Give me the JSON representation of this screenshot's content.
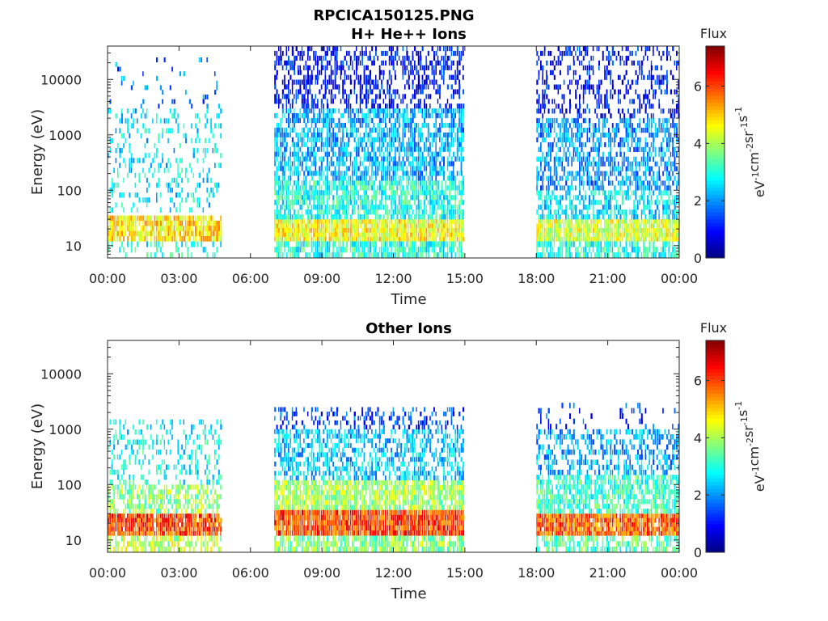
{
  "figure": {
    "title_line1": "RPCICA150125.PNG"
  },
  "colormap": [
    "#00007f",
    "#0000ff",
    "#007fff",
    "#00ffff",
    "#7fff7f",
    "#ffff00",
    "#ff7f00",
    "#ff0000",
    "#7f0000"
  ],
  "chart_data": [
    {
      "type": "heatmap",
      "title": "H+ He++ Ions",
      "xlabel": "Time",
      "ylabel": "Energy (eV)",
      "y_scale": "log",
      "ylim": [
        6,
        40000
      ],
      "xlim": [
        0,
        24
      ],
      "x_tick_labels": [
        "00:00",
        "03:00",
        "06:00",
        "09:00",
        "12:00",
        "15:00",
        "18:00",
        "21:00",
        "00:00"
      ],
      "x_tick_values": [
        0,
        3,
        6,
        9,
        12,
        15,
        18,
        21,
        24
      ],
      "y_tick_labels": [
        "10",
        "100",
        "1000",
        "10000"
      ],
      "y_tick_values": [
        10,
        100,
        1000,
        10000
      ],
      "colorbar": {
        "label": "Flux",
        "units_base": [
          "eV",
          "cm",
          "sr",
          "s"
        ],
        "units_exp": [
          "-1",
          "-2",
          "-1",
          "-1"
        ],
        "ticks": [
          "0",
          "2",
          "4",
          "6"
        ],
        "tick_values": [
          0,
          2,
          4,
          6
        ],
        "clim": [
          0,
          7.4
        ]
      },
      "data_intervals": [
        {
          "start": 0.0,
          "end": 4.75,
          "bands": [
            {
              "elo": 12,
              "ehi": 35,
              "flux": 4.8,
              "density": 0.9
            },
            {
              "elo": 6,
              "ehi": 12,
              "flux": 3.0,
              "density": 0.25
            },
            {
              "elo": 40,
              "ehi": 3000,
              "flux": 2.6,
              "density": 0.22
            },
            {
              "elo": 3000,
              "ehi": 25000,
              "flux": 1.8,
              "density": 0.06
            }
          ]
        },
        {
          "start": 7.0,
          "end": 15.0,
          "bands": [
            {
              "elo": 12,
              "ehi": 30,
              "flux": 4.6,
              "density": 0.98
            },
            {
              "elo": 6,
              "ehi": 12,
              "flux": 3.0,
              "density": 0.8
            },
            {
              "elo": 30,
              "ehi": 150,
              "flux": 3.0,
              "density": 0.8
            },
            {
              "elo": 150,
              "ehi": 3000,
              "flux": 2.2,
              "density": 0.7
            },
            {
              "elo": 3000,
              "ehi": 40000,
              "flux": 1.0,
              "density": 0.5
            }
          ]
        },
        {
          "start": 18.0,
          "end": 24.0,
          "bands": [
            {
              "elo": 12,
              "ehi": 30,
              "flux": 4.3,
              "density": 0.95
            },
            {
              "elo": 6,
              "ehi": 12,
              "flux": 3.0,
              "density": 0.7
            },
            {
              "elo": 30,
              "ehi": 100,
              "flux": 2.6,
              "density": 0.6
            },
            {
              "elo": 100,
              "ehi": 2000,
              "flux": 2.0,
              "density": 0.6
            },
            {
              "elo": 2000,
              "ehi": 40000,
              "flux": 1.0,
              "density": 0.35
            }
          ]
        }
      ]
    },
    {
      "type": "heatmap",
      "title": "Other Ions",
      "xlabel": "Time",
      "ylabel": "Energy (eV)",
      "y_scale": "log",
      "ylim": [
        6,
        40000
      ],
      "xlim": [
        0,
        24
      ],
      "x_tick_labels": [
        "00:00",
        "03:00",
        "06:00",
        "09:00",
        "12:00",
        "15:00",
        "18:00",
        "21:00",
        "00:00"
      ],
      "x_tick_values": [
        0,
        3,
        6,
        9,
        12,
        15,
        18,
        21,
        24
      ],
      "y_tick_labels": [
        "10",
        "100",
        "1000",
        "10000"
      ],
      "y_tick_values": [
        10,
        100,
        1000,
        10000
      ],
      "colorbar": {
        "label": "Flux",
        "units_base": [
          "eV",
          "cm",
          "sr",
          "s"
        ],
        "units_exp": [
          "-1",
          "-2",
          "-1",
          "-1"
        ],
        "ticks": [
          "0",
          "2",
          "4",
          "6"
        ],
        "tick_values": [
          0,
          2,
          4,
          6
        ],
        "clim": [
          0,
          7.4
        ]
      },
      "data_intervals": [
        {
          "start": 0.0,
          "end": 4.8,
          "bands": [
            {
              "elo": 12,
              "ehi": 30,
              "flux": 6.0,
              "density": 0.95
            },
            {
              "elo": 6,
              "ehi": 12,
              "flux": 4.2,
              "density": 0.6
            },
            {
              "elo": 30,
              "ehi": 100,
              "flux": 3.8,
              "density": 0.6
            },
            {
              "elo": 100,
              "ehi": 1500,
              "flux": 2.8,
              "density": 0.3
            }
          ]
        },
        {
          "start": 7.0,
          "end": 15.0,
          "bands": [
            {
              "elo": 12,
              "ehi": 35,
              "flux": 6.0,
              "density": 0.99
            },
            {
              "elo": 6,
              "ehi": 12,
              "flux": 3.8,
              "density": 0.8
            },
            {
              "elo": 35,
              "ehi": 120,
              "flux": 4.0,
              "density": 0.85
            },
            {
              "elo": 120,
              "ehi": 1000,
              "flux": 2.4,
              "density": 0.55
            },
            {
              "elo": 1000,
              "ehi": 2500,
              "flux": 1.4,
              "density": 0.3
            }
          ]
        },
        {
          "start": 18.0,
          "end": 24.0,
          "bands": [
            {
              "elo": 12,
              "ehi": 30,
              "flux": 5.8,
              "density": 0.97
            },
            {
              "elo": 6,
              "ehi": 12,
              "flux": 3.4,
              "density": 0.7
            },
            {
              "elo": 30,
              "ehi": 150,
              "flux": 3.2,
              "density": 0.75
            },
            {
              "elo": 150,
              "ehi": 1000,
              "flux": 2.2,
              "density": 0.45
            },
            {
              "elo": 1000,
              "ehi": 3000,
              "flux": 1.3,
              "density": 0.15
            }
          ]
        }
      ]
    }
  ]
}
